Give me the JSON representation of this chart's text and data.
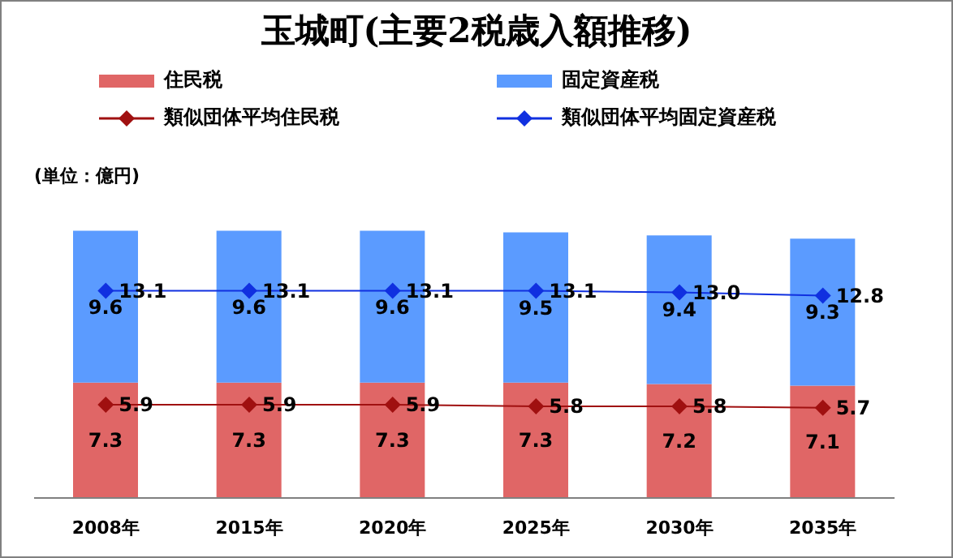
{
  "chart_data": {
    "type": "bar",
    "title": "玉城町(主要2税歳入額推移)",
    "annotations": [
      "(単位：億円)"
    ],
    "categories": [
      "2008年",
      "2015年",
      "2020年",
      "2025年",
      "2030年",
      "2035年"
    ],
    "stacked": true,
    "data_labels": true,
    "legend": "top",
    "marker": "diamond",
    "series": [
      {
        "name": "住民税",
        "color": "#e06666",
        "values": [
          7.3,
          7.3,
          7.3,
          7.3,
          7.2,
          7.1
        ]
      },
      {
        "name": "固定資産税",
        "color": "#5b9bff",
        "values": [
          9.6,
          9.6,
          9.6,
          9.5,
          9.4,
          9.3
        ]
      },
      {
        "name": "類似団体平均住民税",
        "type": "line",
        "color": "#a01010",
        "values": [
          5.9,
          5.9,
          5.9,
          5.8,
          5.8,
          5.7
        ]
      },
      {
        "name": "類似団体平均固定資産税",
        "type": "line",
        "color": "#1030e0",
        "values": [
          13.1,
          13.1,
          13.1,
          13.1,
          13.0,
          12.8
        ],
        "value_labels": [
          "13.1",
          "13.1",
          "13.1",
          "13.1",
          "13.0",
          "12.8"
        ]
      }
    ]
  }
}
